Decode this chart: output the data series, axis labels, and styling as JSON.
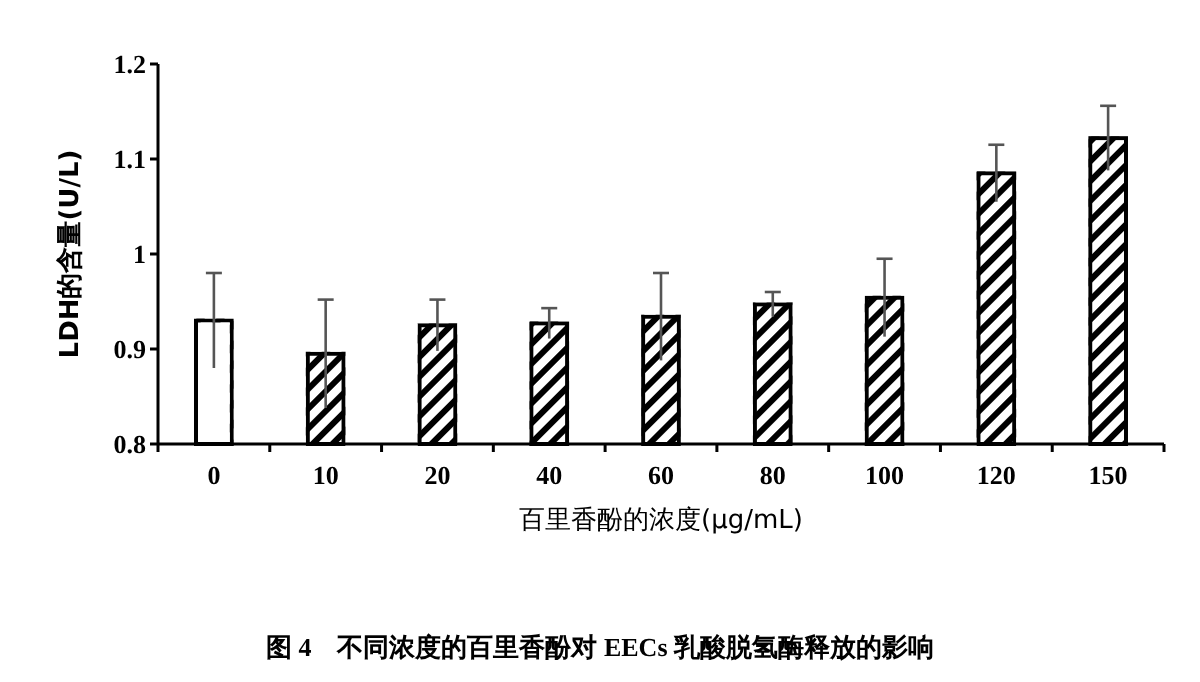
{
  "chart_data": {
    "type": "bar",
    "title": "图 4　不同浓度的百里香酚对 EECs 乳酸脱氢酶释放的影响",
    "xlabel": "百里香酚的浓度(μg/mL)",
    "ylabel": "LDH的含量(U/L)",
    "categories": [
      "0",
      "10",
      "20",
      "40",
      "60",
      "80",
      "100",
      "120",
      "150"
    ],
    "values": [
      0.93,
      0.895,
      0.925,
      0.927,
      0.934,
      0.947,
      0.954,
      1.085,
      1.122
    ],
    "errors": [
      0.05,
      0.057,
      0.027,
      0.016,
      0.046,
      0.013,
      0.041,
      0.03,
      0.034
    ],
    "colors": [
      "#ffffff",
      "#000000",
      "#000000",
      "#000000",
      "#000000",
      "#000000",
      "#000000",
      "#000000",
      "#000000"
    ],
    "ylim": [
      0.8,
      1.2
    ],
    "yticks": [
      0.8,
      0.9,
      1,
      1.1,
      1.2
    ],
    "grid": false
  }
}
